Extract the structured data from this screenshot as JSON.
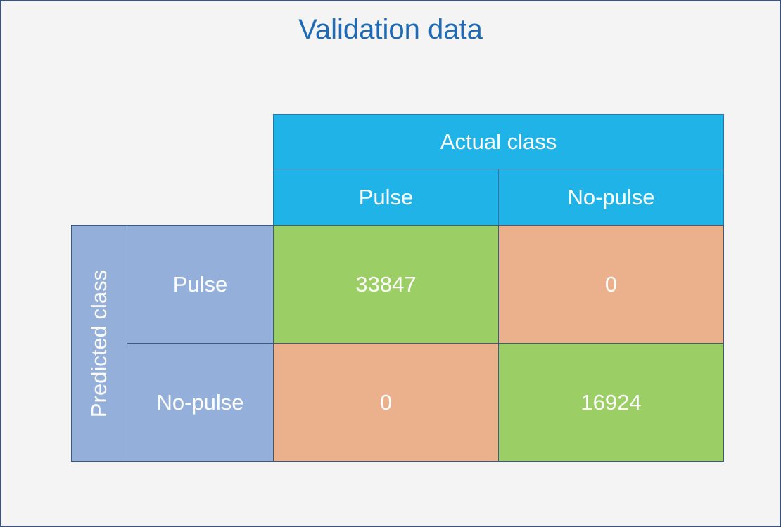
{
  "title": "Validation data",
  "header": {
    "actual_class": "Actual class",
    "columns": [
      "Pulse",
      "No-pulse"
    ]
  },
  "side": {
    "predicted_class": "Predicted class",
    "rows": [
      "Pulse",
      "No-pulse"
    ]
  },
  "matrix": [
    [
      "33847",
      "0"
    ],
    [
      "0",
      "16924"
    ]
  ],
  "colors": {
    "header": "#1fb3e8",
    "predicted": "#94afd9",
    "correct": "#9bcf65",
    "incorrect": "#ebb18d",
    "title": "#1f6ab5"
  }
}
